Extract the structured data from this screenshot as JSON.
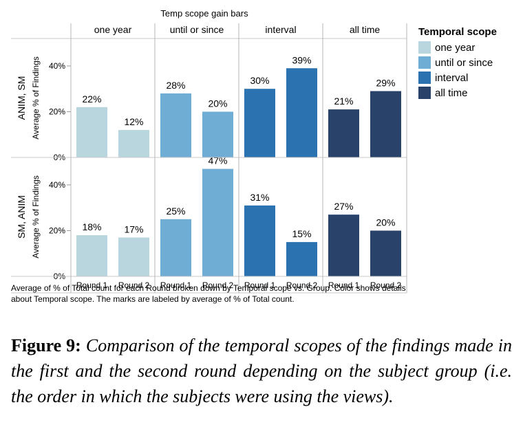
{
  "chart_data": {
    "type": "bar",
    "title": "Temp scope gain bars",
    "column_dimension": "Temporal scope",
    "columns": [
      "one year",
      "until or since",
      "interval",
      "all time"
    ],
    "x_categories": [
      "Round 1",
      "Round 2"
    ],
    "rows": [
      {
        "label": "ANIM, SM",
        "ylabel": "Average % of Findings",
        "values": [
          [
            22,
            12
          ],
          [
            28,
            20
          ],
          [
            30,
            39
          ],
          [
            21,
            29
          ]
        ],
        "value_labels": [
          [
            "22%",
            "12%"
          ],
          [
            "28%",
            "20%"
          ],
          [
            "30%",
            "39%"
          ],
          [
            "21%",
            "29%"
          ]
        ]
      },
      {
        "label": "SM, ANIM",
        "ylabel": "Average % of Findings",
        "values": [
          [
            18,
            17
          ],
          [
            25,
            47
          ],
          [
            31,
            15
          ],
          [
            27,
            20
          ]
        ],
        "value_labels": [
          [
            "18%",
            "17%"
          ],
          [
            "25%",
            "47%"
          ],
          [
            "31%",
            "15%"
          ],
          [
            "27%",
            "20%"
          ]
        ]
      }
    ],
    "yticks": [
      0,
      20,
      40
    ],
    "ytick_labels": [
      "0%",
      "20%",
      "40%"
    ],
    "ylim": [
      0,
      52
    ],
    "grid": false,
    "legend": {
      "title": "Temporal scope",
      "placement": "right",
      "items": [
        {
          "label": "one year",
          "color": "#b9d6df"
        },
        {
          "label": "until or since",
          "color": "#6fadd4"
        },
        {
          "label": "interval",
          "color": "#2b72b0"
        },
        {
          "label": "all time",
          "color": "#28426a"
        }
      ]
    }
  },
  "note": "Average of % of Total count for each Round broken down by Temporal scope vs. Group. Color shows details about Temporal scope. The marks are labeled by average of % of Total count.",
  "caption": {
    "lead": "Figure 9:",
    "text": "Comparison of the temporal scopes of the findings made in the first and the second round depending on the subject group (i.e. the order in which the subjects were using the views)."
  }
}
